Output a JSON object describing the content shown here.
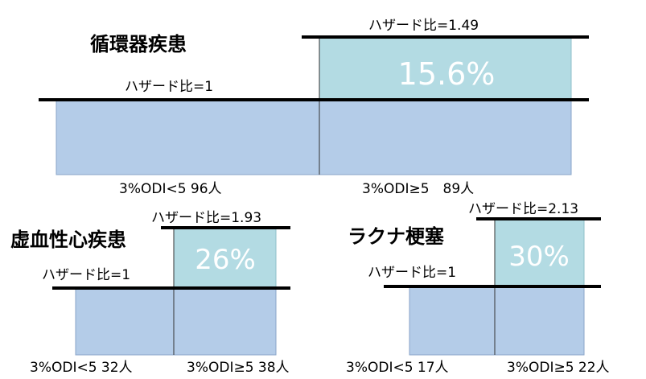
{
  "colors": {
    "base_fill": "#b4cce8",
    "increase_fill": "#b3dbe3",
    "increase_text": "#ffffff",
    "line": "#000000"
  },
  "chart_data": [
    {
      "type": "bar",
      "title": "循環器疾患",
      "categories": [
        "3%ODI<5 96人",
        "3%ODI≥5　89人"
      ],
      "series": [
        {
          "values": [
            1,
            1.49
          ]
        }
      ],
      "hr_labels": [
        "ハザード比=1",
        "ハザード比=1.49"
      ],
      "increase_label": "15.6%"
    },
    {
      "type": "bar",
      "title": "虚血性心疾患",
      "categories": [
        "3%ODI<5 32人",
        "3%ODI≥5 38人"
      ],
      "series": [
        {
          "values": [
            1,
            1.93
          ]
        }
      ],
      "hr_labels": [
        "ハザード比=1",
        "ハザード比=1.93"
      ],
      "increase_label": "26%"
    },
    {
      "type": "bar",
      "title": "ラクナ梗塞",
      "categories": [
        "3%ODI<5 17人",
        "3%ODI≥5 22人"
      ],
      "series": [
        {
          "values": [
            1,
            2.13
          ]
        }
      ],
      "hr_labels": [
        "ハザード比=1",
        "ハザード比=2.13"
      ],
      "increase_label": "30%"
    }
  ]
}
